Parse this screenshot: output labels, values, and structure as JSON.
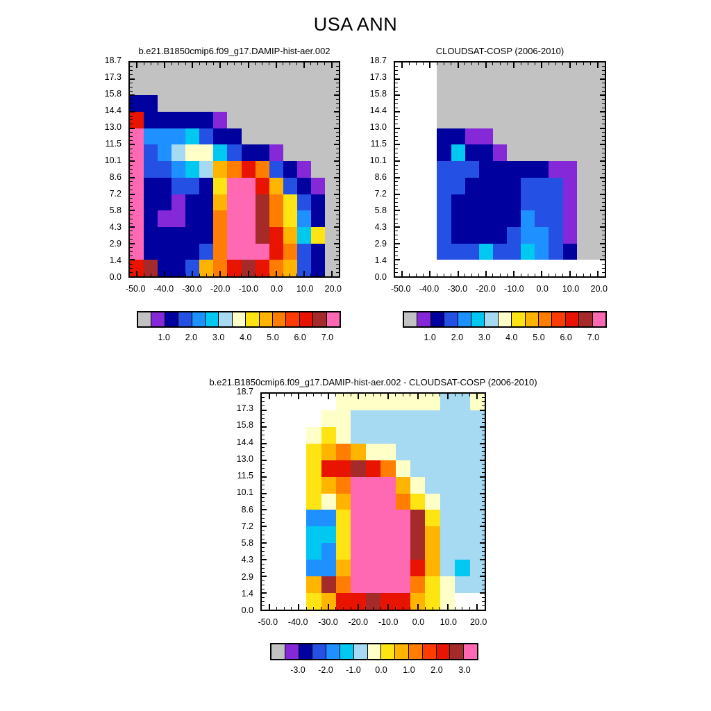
{
  "page_title": "USA ANN",
  "palette": [
    "#c2c2c2",
    "#8428d8",
    "#00009e",
    "#2451e3",
    "#1e90ff",
    "#00c8f0",
    "#a6d9f2",
    "#ffffc8",
    "#ffe414",
    "#ffb400",
    "#ff7d00",
    "#ff3c00",
    "#e81400",
    "#a52a2a",
    "#ff69b4",
    "#ffffff"
  ],
  "palette_names": [
    "gray",
    "purple",
    "dark-navy",
    "blue",
    "dodger-blue",
    "cyan",
    "pale-blue",
    "cream",
    "yellow",
    "amber",
    "orange",
    "orange-red",
    "red",
    "dark-red",
    "pink",
    "white"
  ],
  "colorbar_color_indices": [
    0,
    1,
    2,
    3,
    4,
    5,
    6,
    7,
    8,
    9,
    10,
    11,
    12,
    13,
    14
  ],
  "chart_data": [
    {
      "id": "model",
      "type": "heatmap",
      "title": "b.e21.B1850cmip6.f09_g17.DAMIP-hist-aer.002",
      "x_ticks": [
        "-50.0",
        "-40.0",
        "-30.0",
        "-20.0",
        "-10.0",
        "0.0",
        "10.0",
        "20.0"
      ],
      "x_tick_values": [
        -50,
        -40,
        -30,
        -20,
        -10,
        0,
        10,
        20
      ],
      "y_ticks": [
        "18.7",
        "17.3",
        "15.8",
        "14.4",
        "13.0",
        "11.5",
        "10.1",
        "8.6",
        "7.2",
        "5.8",
        "4.3",
        "2.9",
        "1.4",
        "0.0"
      ],
      "y_tick_values": [
        18.72,
        17.28,
        15.84,
        14.4,
        12.96,
        11.52,
        10.08,
        8.64,
        7.2,
        5.76,
        4.32,
        2.88,
        1.44,
        0
      ],
      "x_range": [
        -52.5,
        22.5
      ],
      "y_range": [
        0,
        18.72
      ],
      "grid": [
        [
          0,
          0,
          0,
          0,
          0,
          0,
          0,
          0,
          0,
          0,
          0,
          0,
          0,
          0,
          0
        ],
        [
          0,
          0,
          0,
          0,
          0,
          0,
          0,
          0,
          0,
          0,
          0,
          0,
          0,
          0,
          0
        ],
        [
          2,
          2,
          0,
          0,
          0,
          0,
          0,
          0,
          0,
          0,
          0,
          0,
          0,
          0,
          0
        ],
        [
          12,
          2,
          2,
          2,
          2,
          2,
          1,
          0,
          0,
          0,
          0,
          0,
          0,
          0,
          0
        ],
        [
          14,
          4,
          4,
          4,
          5,
          3,
          2,
          2,
          0,
          0,
          0,
          0,
          0,
          0,
          0
        ],
        [
          14,
          3,
          4,
          6,
          7,
          7,
          5,
          3,
          2,
          2,
          1,
          0,
          0,
          0,
          0
        ],
        [
          14,
          3,
          3,
          4,
          5,
          6,
          9,
          10,
          12,
          10,
          3,
          2,
          1,
          0,
          0
        ],
        [
          14,
          2,
          2,
          3,
          3,
          2,
          8,
          14,
          14,
          12,
          9,
          3,
          2,
          1,
          0
        ],
        [
          14,
          2,
          2,
          1,
          2,
          2,
          9,
          14,
          14,
          13,
          10,
          8,
          3,
          2,
          0
        ],
        [
          14,
          2,
          1,
          1,
          2,
          2,
          10,
          14,
          14,
          13,
          10,
          8,
          4,
          2,
          0
        ],
        [
          14,
          2,
          2,
          2,
          2,
          2,
          10,
          14,
          14,
          13,
          12,
          9,
          5,
          8,
          0
        ],
        [
          14,
          2,
          2,
          2,
          2,
          3,
          10,
          14,
          14,
          14,
          12,
          10,
          3,
          2,
          0
        ],
        [
          12,
          13,
          2,
          2,
          3,
          9,
          10,
          12,
          13,
          12,
          10,
          9,
          3,
          2,
          0
        ]
      ],
      "colorbar": {
        "labels": [
          "1.0",
          "2.0",
          "3.0",
          "4.0",
          "5.0",
          "6.0",
          "7.0"
        ]
      }
    },
    {
      "id": "obs",
      "type": "heatmap",
      "title": "CLOUDSAT-COSP (2006-2010)",
      "x_ticks": [
        "-50.0",
        "-40.0",
        "-30.0",
        "-20.0",
        "-10.0",
        "0.0",
        "10.0",
        "20.0"
      ],
      "x_tick_values": [
        -50,
        -40,
        -30,
        -20,
        -10,
        0,
        10,
        20
      ],
      "y_ticks": [
        "18.7",
        "17.3",
        "15.8",
        "14.4",
        "13.0",
        "11.5",
        "10.1",
        "8.6",
        "7.2",
        "5.8",
        "4.3",
        "2.9",
        "1.4",
        "0.0"
      ],
      "y_tick_values": [
        18.72,
        17.28,
        15.84,
        14.4,
        12.96,
        11.52,
        10.08,
        8.64,
        7.2,
        5.76,
        4.32,
        2.88,
        1.44,
        0
      ],
      "x_range": [
        -52.5,
        22.5
      ],
      "y_range": [
        0,
        18.72
      ],
      "grid": [
        [
          15,
          15,
          15,
          0,
          0,
          0,
          0,
          0,
          0,
          0,
          0,
          0,
          0,
          0,
          0
        ],
        [
          15,
          15,
          15,
          0,
          0,
          0,
          0,
          0,
          0,
          0,
          0,
          0,
          0,
          0,
          0
        ],
        [
          15,
          15,
          15,
          0,
          0,
          0,
          0,
          0,
          0,
          0,
          0,
          0,
          0,
          0,
          0
        ],
        [
          15,
          15,
          15,
          0,
          0,
          0,
          0,
          0,
          0,
          0,
          0,
          0,
          0,
          0,
          0
        ],
        [
          15,
          15,
          15,
          2,
          2,
          1,
          1,
          0,
          0,
          0,
          0,
          0,
          0,
          0,
          0
        ],
        [
          15,
          15,
          15,
          2,
          5,
          2,
          2,
          1,
          0,
          0,
          0,
          0,
          0,
          0,
          0
        ],
        [
          15,
          15,
          15,
          3,
          3,
          3,
          2,
          2,
          2,
          2,
          2,
          1,
          1,
          0,
          0
        ],
        [
          15,
          15,
          15,
          3,
          3,
          2,
          2,
          2,
          2,
          3,
          3,
          3,
          1,
          0,
          0
        ],
        [
          15,
          15,
          15,
          3,
          2,
          2,
          2,
          2,
          2,
          3,
          3,
          3,
          1,
          0,
          0
        ],
        [
          15,
          15,
          15,
          3,
          2,
          2,
          2,
          2,
          2,
          4,
          3,
          3,
          1,
          0,
          0
        ],
        [
          15,
          15,
          15,
          3,
          2,
          2,
          2,
          2,
          3,
          4,
          4,
          3,
          1,
          0,
          0
        ],
        [
          15,
          15,
          15,
          3,
          3,
          3,
          5,
          3,
          3,
          5,
          4,
          3,
          2,
          0,
          0
        ],
        [
          15,
          15,
          15,
          15,
          15,
          15,
          15,
          15,
          15,
          15,
          15,
          15,
          15,
          15,
          15
        ]
      ],
      "colorbar": {
        "labels": [
          "1.0",
          "2.0",
          "3.0",
          "4.0",
          "5.0",
          "6.0",
          "7.0"
        ]
      }
    },
    {
      "id": "diff",
      "type": "heatmap",
      "title": "b.e21.B1850cmip6.f09_g17.DAMIP-hist-aer.002 - CLOUDSAT-COSP (2006-2010)",
      "x_ticks": [
        "-50.0",
        "-40.0",
        "-30.0",
        "-20.0",
        "-10.0",
        "0.0",
        "10.0",
        "20.0"
      ],
      "x_tick_values": [
        -50,
        -40,
        -30,
        -20,
        -10,
        0,
        10,
        20
      ],
      "y_ticks": [
        "18.7",
        "17.3",
        "15.8",
        "14.4",
        "13.0",
        "11.5",
        "10.1",
        "8.6",
        "7.2",
        "5.8",
        "4.3",
        "2.9",
        "1.4",
        "0.0"
      ],
      "y_tick_values": [
        18.72,
        17.28,
        15.84,
        14.4,
        12.96,
        11.52,
        10.08,
        8.64,
        7.2,
        5.76,
        4.32,
        2.88,
        1.44,
        0
      ],
      "x_range": [
        -52.5,
        22.5
      ],
      "y_range": [
        0,
        18.72
      ],
      "grid": [
        [
          15,
          15,
          15,
          15,
          15,
          7,
          7,
          7,
          7,
          7,
          7,
          7,
          6,
          6,
          7
        ],
        [
          15,
          15,
          15,
          15,
          7,
          7,
          6,
          6,
          6,
          6,
          6,
          6,
          6,
          6,
          6
        ],
        [
          15,
          15,
          15,
          7,
          8,
          7,
          6,
          6,
          6,
          6,
          6,
          6,
          6,
          6,
          6
        ],
        [
          15,
          15,
          15,
          8,
          9,
          10,
          9,
          7,
          7,
          6,
          6,
          6,
          6,
          6,
          6
        ],
        [
          15,
          15,
          15,
          8,
          12,
          12,
          13,
          12,
          10,
          7,
          6,
          6,
          6,
          6,
          6
        ],
        [
          15,
          15,
          15,
          8,
          9,
          10,
          14,
          14,
          14,
          9,
          7,
          6,
          6,
          6,
          6
        ],
        [
          15,
          15,
          15,
          8,
          7,
          9,
          14,
          14,
          14,
          10,
          8,
          7,
          6,
          6,
          6
        ],
        [
          15,
          15,
          15,
          4,
          4,
          8,
          14,
          14,
          14,
          14,
          13,
          8,
          6,
          6,
          6
        ],
        [
          15,
          15,
          15,
          5,
          5,
          8,
          14,
          14,
          14,
          14,
          13,
          9,
          6,
          6,
          6
        ],
        [
          15,
          15,
          15,
          5,
          4,
          8,
          14,
          14,
          14,
          14,
          13,
          9,
          6,
          6,
          6
        ],
        [
          15,
          15,
          15,
          4,
          4,
          9,
          14,
          14,
          14,
          14,
          12,
          9,
          6,
          5,
          6
        ],
        [
          15,
          15,
          15,
          9,
          13,
          10,
          14,
          14,
          14,
          14,
          10,
          8,
          7,
          6,
          6
        ],
        [
          15,
          15,
          15,
          8,
          9,
          12,
          12,
          13,
          12,
          12,
          9,
          8,
          7,
          15,
          15
        ]
      ],
      "colorbar": {
        "labels": [
          "-3.0",
          "-2.0",
          "-1.0",
          "0.0",
          "1.0",
          "2.0",
          "3.0"
        ]
      }
    }
  ]
}
